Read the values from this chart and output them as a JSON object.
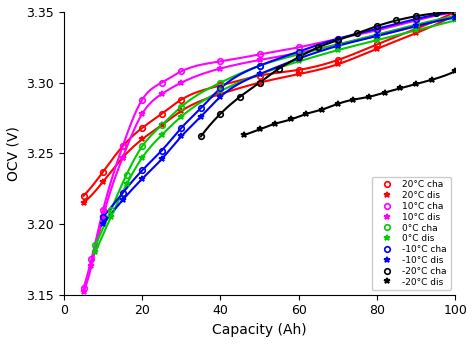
{
  "title": "",
  "xlabel": "Capacity (Ah)",
  "ylabel": "OCV (V)",
  "xlim": [
    0,
    100
  ],
  "ylim": [
    3.15,
    3.35
  ],
  "yticks": [
    3.15,
    3.2,
    3.25,
    3.3,
    3.35
  ],
  "xticks": [
    0,
    20,
    40,
    60,
    80,
    100
  ],
  "series": [
    {
      "label": "20°C cha",
      "color": "#ff0000",
      "marker": "o",
      "x": [
        5,
        10,
        15,
        20,
        25,
        30,
        40,
        50,
        60,
        70,
        80,
        90,
        100
      ],
      "y": [
        3.22,
        3.237,
        3.255,
        3.268,
        3.278,
        3.288,
        3.298,
        3.305,
        3.309,
        3.316,
        3.327,
        3.338,
        3.35
      ]
    },
    {
      "label": "20°C dis",
      "color": "#ff0000",
      "marker": "*",
      "x": [
        5,
        10,
        15,
        20,
        25,
        30,
        40,
        50,
        60,
        70,
        80,
        90,
        100
      ],
      "y": [
        3.215,
        3.23,
        3.247,
        3.26,
        3.27,
        3.28,
        3.292,
        3.3,
        3.306,
        3.313,
        3.324,
        3.335,
        3.348
      ]
    },
    {
      "label": "10°C cha",
      "color": "#ff00ff",
      "marker": "o",
      "x": [
        5,
        7,
        10,
        15,
        20,
        25,
        30,
        40,
        50,
        60,
        70,
        80,
        90,
        100
      ],
      "y": [
        3.155,
        3.175,
        3.21,
        3.255,
        3.288,
        3.3,
        3.308,
        3.315,
        3.32,
        3.325,
        3.331,
        3.337,
        3.344,
        3.35
      ]
    },
    {
      "label": "10°C dis",
      "color": "#ff00ff",
      "marker": "*",
      "x": [
        5,
        7,
        10,
        15,
        20,
        25,
        30,
        40,
        50,
        60,
        70,
        80,
        90,
        100
      ],
      "y": [
        3.152,
        3.17,
        3.205,
        3.247,
        3.278,
        3.292,
        3.3,
        3.31,
        3.316,
        3.321,
        3.327,
        3.333,
        3.34,
        3.347
      ]
    },
    {
      "label": "0°C cha",
      "color": "#00cc00",
      "marker": "o",
      "x": [
        8,
        12,
        16,
        20,
        25,
        30,
        40,
        50,
        60,
        70,
        80,
        90,
        100
      ],
      "y": [
        3.185,
        3.21,
        3.235,
        3.255,
        3.27,
        3.283,
        3.3,
        3.312,
        3.32,
        3.327,
        3.334,
        3.341,
        3.347
      ]
    },
    {
      "label": "0°C dis",
      "color": "#00cc00",
      "marker": "*",
      "x": [
        8,
        12,
        16,
        20,
        25,
        30,
        40,
        50,
        60,
        70,
        80,
        90,
        100
      ],
      "y": [
        3.18,
        3.205,
        3.228,
        3.247,
        3.263,
        3.276,
        3.294,
        3.306,
        3.315,
        3.323,
        3.33,
        3.337,
        3.344
      ]
    },
    {
      "label": "-10°C cha",
      "color": "#0000ff",
      "marker": "o",
      "x": [
        10,
        15,
        20,
        25,
        30,
        35,
        40,
        50,
        60,
        70,
        80,
        90,
        100
      ],
      "y": [
        3.205,
        3.222,
        3.238,
        3.252,
        3.268,
        3.282,
        3.296,
        3.312,
        3.322,
        3.331,
        3.338,
        3.345,
        3.35
      ]
    },
    {
      "label": "-10°C dis",
      "color": "#0000ff",
      "marker": "*",
      "x": [
        10,
        15,
        20,
        25,
        30,
        35,
        40,
        50,
        60,
        70,
        80,
        90,
        100
      ],
      "y": [
        3.2,
        3.217,
        3.232,
        3.246,
        3.262,
        3.276,
        3.29,
        3.306,
        3.317,
        3.326,
        3.333,
        3.34,
        3.346
      ]
    },
    {
      "label": "-20°C cha",
      "color": "#000000",
      "marker": "o",
      "x": [
        35,
        40,
        45,
        50,
        55,
        60,
        65,
        70,
        75,
        80,
        85,
        90,
        95,
        100
      ],
      "y": [
        3.262,
        3.278,
        3.29,
        3.3,
        3.31,
        3.318,
        3.325,
        3.33,
        3.335,
        3.34,
        3.344,
        3.347,
        3.349,
        3.35
      ]
    },
    {
      "label": "-20°C dis",
      "color": "#000000",
      "marker": "*",
      "x": [
        46,
        50,
        54,
        58,
        62,
        66,
        70,
        74,
        78,
        82,
        86,
        90,
        94,
        100
      ],
      "y": [
        3.263,
        3.267,
        3.271,
        3.274,
        3.278,
        3.281,
        3.285,
        3.288,
        3.29,
        3.293,
        3.296,
        3.299,
        3.302,
        3.308
      ]
    }
  ],
  "legend_loc": "lower right",
  "markersize": 4,
  "linewidth": 1.5
}
